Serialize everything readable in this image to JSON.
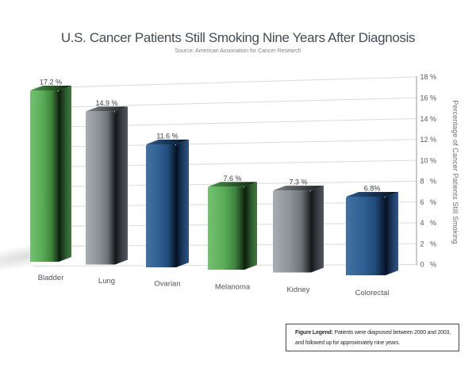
{
  "chart_data": {
    "type": "bar",
    "style": "3d-perspective",
    "title": "U.S. Cancer Patients Still Smoking Nine Years After Diagnosis",
    "subtitle": "Source: American Association for Cancer Research",
    "categories": [
      "Bladder",
      "Lung",
      "Ovarian",
      "Melanoma",
      "Kidney",
      "Colorectal"
    ],
    "values": [
      17.2,
      14.9,
      11.6,
      7.6,
      7.3,
      6.8
    ],
    "value_labels": [
      "17.2 %",
      "14.9 %",
      "11.6 %",
      "7.6 %",
      "7.3 %",
      "6.8%"
    ],
    "bar_color_scheme": [
      "green",
      "gray",
      "blue",
      "green",
      "gray",
      "blue"
    ],
    "xlabel": "",
    "ylabel": "Percentage of Cancer Patients Still Smoking",
    "ylim": [
      0,
      18
    ],
    "yticks": [
      18,
      16,
      14,
      12,
      10,
      8,
      6,
      4,
      2,
      0
    ],
    "ytick_suffix": "%",
    "grid": true,
    "legend_position": "none",
    "palette": {
      "grid_color": "#d9dadb",
      "axis_color": "#aeb0b3",
      "tick_text_color": "#58595b",
      "value_text_color": "#3a3f44",
      "category_text_color": "#505459",
      "green": {
        "front": [
          "#74c271",
          "#58ab56",
          "#3f833f",
          "#132913"
        ],
        "side": [
          "#0b180b",
          "#2e5a2e",
          "#3f7a3f"
        ],
        "top": [
          "#4a9449",
          "#0f2410"
        ]
      },
      "gray": {
        "front": [
          "#a8adb2",
          "#8d9297",
          "#6d7277",
          "#1b1e20"
        ],
        "side": [
          "#121416",
          "#3a3e43",
          "#53585d"
        ],
        "top": [
          "#82878c",
          "#17191b"
        ]
      },
      "blue": {
        "front": [
          "#4273a1",
          "#2e5e93",
          "#1f4877",
          "#071525"
        ],
        "side": [
          "#04101f",
          "#1d3c63",
          "#2c5488"
        ],
        "top": [
          "#2a5a8c",
          "#061120"
        ]
      }
    }
  },
  "figure_legend": {
    "label": "Figure Legend:",
    "line1": "Patients were diagnosed between 2000 and 2003,",
    "line2": "and followed up for approximately nine years."
  }
}
